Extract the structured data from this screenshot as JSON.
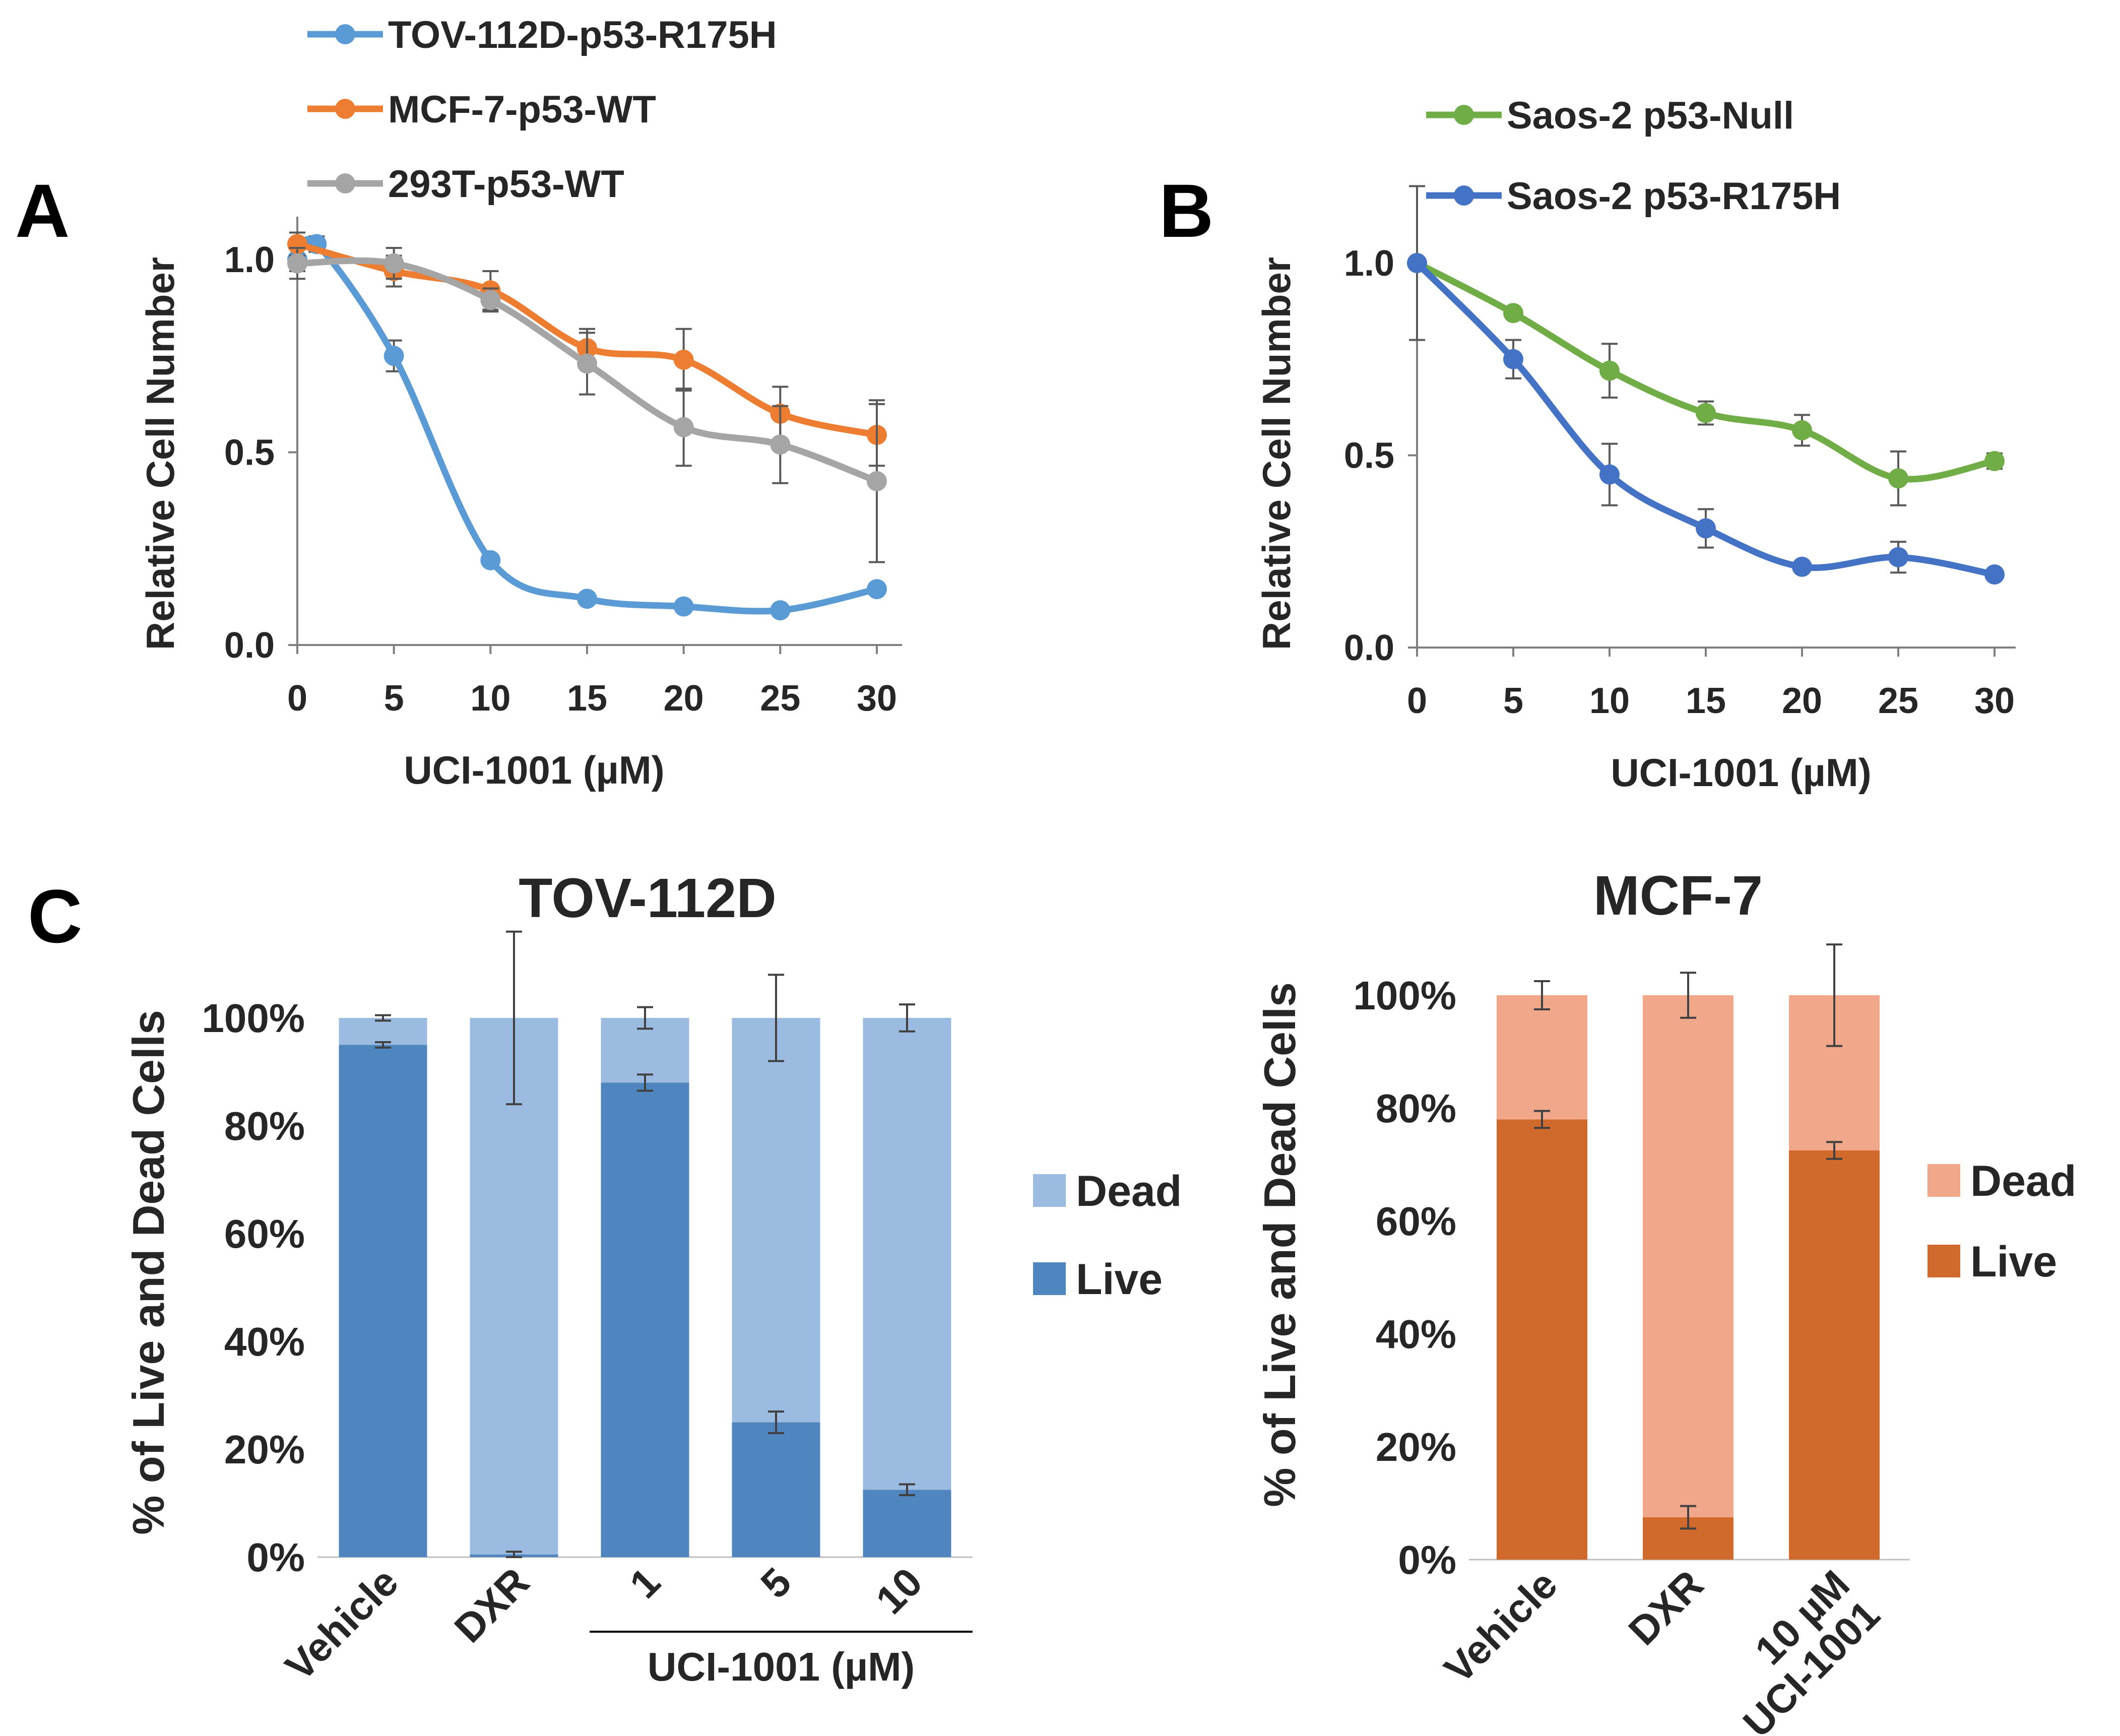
{
  "chart_data": [
    {
      "panel": "A",
      "type": "line",
      "xlabel": "UCI-1001 (µM)",
      "ylabel": "Relative Cell Number",
      "xlim": [
        0,
        30
      ],
      "ylim": [
        0,
        1.0
      ],
      "x_ticks": [
        "0",
        "5",
        "10",
        "15",
        "20",
        "25",
        "30"
      ],
      "y_ticks": [
        "0.0",
        "0.5",
        "1.0"
      ],
      "series": [
        {
          "name": "TOV-112D-p53-R175H",
          "color": "#5B9BD5",
          "x": [
            0,
            1,
            5,
            10,
            15,
            20,
            25,
            30
          ],
          "values": [
            1.0,
            1.04,
            0.75,
            0.22,
            0.12,
            0.1,
            0.09,
            0.145
          ],
          "errors": [
            0.03,
            0.02,
            0.04,
            0.01,
            0.01,
            0.01,
            0.01,
            0.01
          ]
        },
        {
          "name": "MCF-7-p53-WT",
          "color": "#ED7D31",
          "x": [
            0,
            5,
            10,
            15,
            20,
            25,
            30
          ],
          "values": [
            1.04,
            0.97,
            0.92,
            0.77,
            0.74,
            0.6,
            0.545
          ],
          "errors": [
            0.03,
            0.04,
            0.05,
            0.05,
            0.08,
            0.07,
            0.08
          ]
        },
        {
          "name": "293T-p53-WT",
          "color": "#A5A5A5",
          "x": [
            0,
            5,
            10,
            15,
            20,
            25,
            30
          ],
          "values": [
            0.99,
            0.99,
            0.895,
            0.73,
            0.565,
            0.52,
            0.425
          ],
          "errors": [
            0.04,
            0.04,
            0.03,
            0.08,
            0.1,
            0.1,
            0.21
          ]
        }
      ]
    },
    {
      "panel": "B",
      "type": "line",
      "xlabel": "UCI-1001 (µM)",
      "ylabel": "Relative Cell Number",
      "xlim": [
        0,
        30
      ],
      "ylim": [
        0,
        1.0
      ],
      "x_ticks": [
        "0",
        "5",
        "10",
        "15",
        "20",
        "25",
        "30"
      ],
      "y_ticks": [
        "0.0",
        "0.5",
        "1.0"
      ],
      "series": [
        {
          "name": "Saos-2 p53-Null",
          "color": "#70AD47",
          "x": [
            0,
            5,
            10,
            15,
            20,
            25,
            30
          ],
          "values": [
            1.0,
            0.87,
            0.72,
            0.61,
            0.565,
            0.44,
            0.485
          ],
          "errors": [
            0.2,
            0.01,
            0.07,
            0.03,
            0.04,
            0.07,
            0.02
          ]
        },
        {
          "name": "Saos-2 p53-R175H",
          "color": "#4472C4",
          "x": [
            0,
            5,
            10,
            15,
            20,
            25,
            30
          ],
          "values": [
            1.0,
            0.75,
            0.45,
            0.31,
            0.21,
            0.235,
            0.19
          ],
          "errors": [
            0.01,
            0.05,
            0.08,
            0.05,
            0.01,
            0.04,
            0.01
          ]
        }
      ]
    },
    {
      "panel": "C",
      "type": "bar",
      "stacked": true,
      "title": "TOV-112D",
      "ylabel": "% of Live and Dead Cells",
      "ylim": [
        0,
        100
      ],
      "y_ticks": [
        "0%",
        "20%",
        "40%",
        "60%",
        "80%",
        "100%"
      ],
      "categories": [
        "Vehicle",
        "DXR",
        "1",
        "5",
        "10"
      ],
      "group_label": "UCI-1001 (µM)",
      "series": [
        {
          "name": "Live",
          "color": "#4F86BF",
          "values": [
            95,
            0.5,
            88,
            25,
            12.5
          ],
          "errors": [
            0.5,
            0.5,
            1.5,
            2,
            1
          ]
        },
        {
          "name": "Dead",
          "color": "#9BBBE0",
          "values": [
            5,
            99.5,
            12,
            75,
            87.5
          ],
          "errors": [
            0.5,
            16,
            2,
            8,
            2.5
          ]
        }
      ]
    },
    {
      "panel": "C",
      "type": "bar",
      "stacked": true,
      "title": "MCF-7",
      "ylabel": "% of Live and Dead Cells",
      "ylim": [
        0,
        100
      ],
      "y_ticks": [
        "0%",
        "20%",
        "40%",
        "60%",
        "80%",
        "100%"
      ],
      "categories": [
        "Vehicle",
        "DXR",
        "10 µM UCI-1001"
      ],
      "category_lines": [
        [
          "Vehicle"
        ],
        [
          "DXR"
        ],
        [
          "10 µM",
          "UCI-1001"
        ]
      ],
      "series": [
        {
          "name": "Live",
          "color": "#D0692C",
          "values": [
            78,
            7.5,
            72.5
          ],
          "errors": [
            1.5,
            2,
            1.5
          ]
        },
        {
          "name": "Dead",
          "color": "#F0A78A",
          "values": [
            22,
            92.5,
            27.5
          ],
          "errors": [
            2.5,
            4,
            9
          ]
        }
      ]
    }
  ],
  "panels": {
    "a": "A",
    "b": "B",
    "c": "C"
  },
  "legend_c": {
    "dead": "Dead",
    "live": "Live"
  }
}
